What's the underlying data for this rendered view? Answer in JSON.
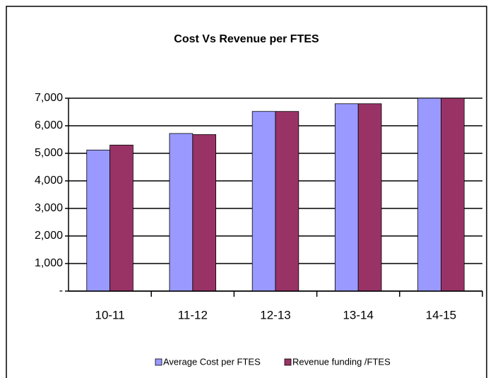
{
  "chart_data": {
    "type": "bar",
    "title": "Cost Vs Revenue per FTES",
    "categories": [
      "10-11",
      "11-12",
      "12-13",
      "13-14",
      "14-15"
    ],
    "series": [
      {
        "name": "Average Cost per FTES",
        "color": "#9999ff",
        "values": [
          5120,
          5720,
          6520,
          6800,
          7000
        ]
      },
      {
        "name": "Revenue funding /FTES",
        "color": "#993366",
        "values": [
          5300,
          5680,
          6520,
          6800,
          7000
        ]
      }
    ],
    "ylim": [
      0,
      7000
    ],
    "yticks": [
      {
        "value": 0,
        "label": "-"
      },
      {
        "value": 1000,
        "label": "1,000"
      },
      {
        "value": 2000,
        "label": "2,000"
      },
      {
        "value": 3000,
        "label": "3,000"
      },
      {
        "value": 4000,
        "label": "4,000"
      },
      {
        "value": 5000,
        "label": "5,000"
      },
      {
        "value": 6000,
        "label": "6,000"
      },
      {
        "value": 7000,
        "label": "7,000"
      }
    ],
    "grid": true,
    "legend": "bottom"
  }
}
